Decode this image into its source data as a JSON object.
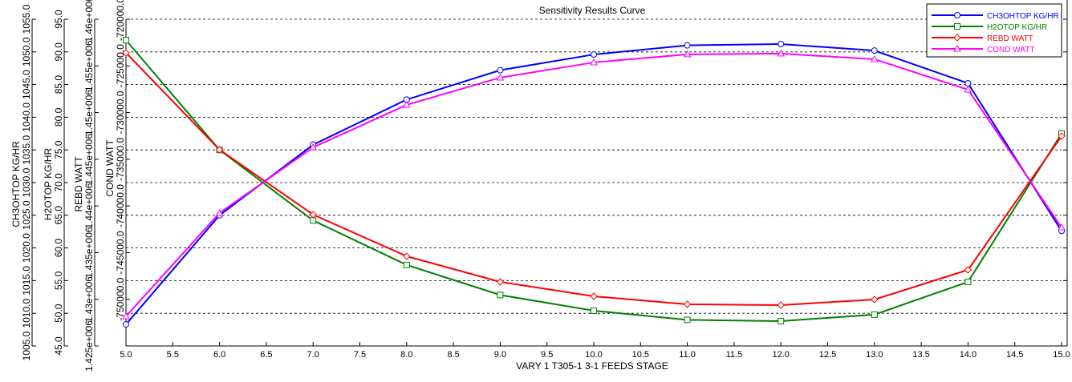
{
  "chart_data": {
    "type": "line",
    "title": "Sensitivity Results Curve",
    "xlabel": "VARY  1 T305-1 3-1 FEEDS STAGE",
    "xlim": [
      5.0,
      15.0
    ],
    "xticks": [
      "5.0",
      "5.5",
      "6.0",
      "6.5",
      "7.0",
      "7.5",
      "8.0",
      "8.5",
      "9.0",
      "9.5",
      "10.0",
      "10.5",
      "11.0",
      "11.5",
      "12.0",
      "12.5",
      "13.0",
      "13.5",
      "14.0",
      "14.5",
      "15.0"
    ],
    "x": [
      5,
      6,
      7,
      8,
      9,
      10,
      11,
      12,
      13,
      14,
      15
    ],
    "grid": "horizontal-dashed",
    "legend_position": "top-right",
    "axes": [
      {
        "label": "CH3OHTOP KG/HR",
        "ylim": [
          1005,
          1055
        ],
        "ticks": [
          "1005.0",
          "1010.0",
          "1015.0",
          "1020.0",
          "1025.0",
          "1030.0",
          "1035.0",
          "1040.0",
          "1045.0",
          "1050.0",
          "1055.0"
        ]
      },
      {
        "label": "H2OTOP KG/HR",
        "ylim": [
          45,
          95
        ],
        "ticks": [
          "45.0",
          "50.0",
          "55.0",
          "60.0",
          "65.0",
          "70.0",
          "75.0",
          "80.0",
          "85.0",
          "90.0",
          "95.0"
        ]
      },
      {
        "label": "REBD WATT",
        "ylim": [
          1425000,
          1460000
        ],
        "ticks": [
          "1.425e+006",
          "1.43e+006",
          "1.435e+006",
          "1.44e+006",
          "1.445e+006",
          "1.45e+006",
          "1.455e+006",
          "1.46e+006"
        ]
      },
      {
        "label": "COND WATT",
        "ylim": [
          -755000,
          -720000
        ],
        "ticks": [
          "",
          "-750000.0",
          "-745000.0",
          "-740000.0",
          "-735000.0",
          "-730000.0",
          "-725000.0",
          "-720000.0"
        ]
      }
    ],
    "series": [
      {
        "name": "CH3OHTOP KG/HR",
        "axis": 0,
        "color": "#0000ff",
        "marker": "circle",
        "values": [
          1008.3,
          1025.0,
          1035.8,
          1042.7,
          1047.2,
          1049.6,
          1051.0,
          1051.2,
          1050.2,
          1045.2,
          1022.6
        ]
      },
      {
        "name": "H2OTOP KG/HR",
        "axis": 1,
        "color": "#008000",
        "marker": "square",
        "values": [
          91.8,
          75.0,
          64.2,
          57.4,
          52.8,
          50.4,
          49.0,
          48.8,
          49.8,
          54.8,
          77.5
        ]
      },
      {
        "name": "REBD WATT",
        "axis": 2,
        "color": "#ff0000",
        "marker": "diamond",
        "values": [
          1456400,
          1446020,
          1439070,
          1434610,
          1431864,
          1430320,
          1429462,
          1429376,
          1429976,
          1433151,
          1447480
        ]
      },
      {
        "name": "COND WATT",
        "axis": 3,
        "color": "#ff00ff",
        "marker": "triangle",
        "values": [
          -751825,
          -740757,
          -733722,
          -729174,
          -726257,
          -724627,
          -723769,
          -723683,
          -724284,
          -727544,
          -742302
        ]
      }
    ]
  }
}
